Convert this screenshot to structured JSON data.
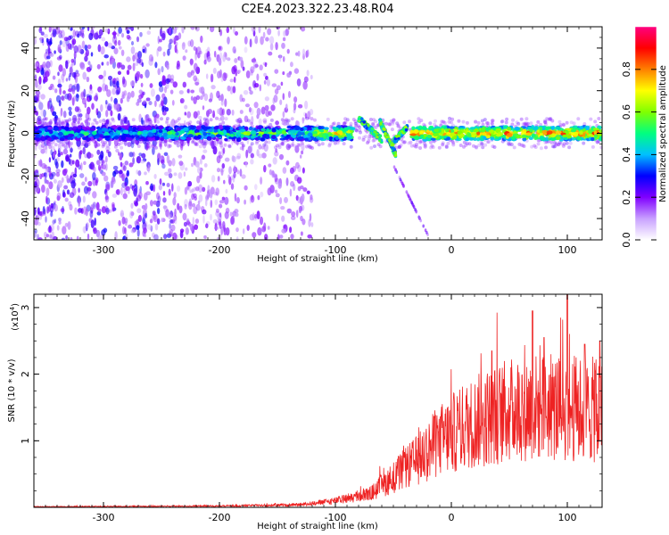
{
  "title": "C2E4.2023.322.23.48.R04",
  "chart_data": [
    {
      "type": "heatmap",
      "name": "spectrogram",
      "xlabel": "Height of straight line (km)",
      "ylabel": "Frequency (Hz)",
      "xlim": [
        -360,
        130
      ],
      "ylim": [
        -50,
        50
      ],
      "xticks": [
        -300,
        -200,
        -100,
        0,
        100
      ],
      "yticks": [
        -40,
        -20,
        0,
        20,
        40
      ],
      "xtick_labels": [
        "-300",
        "-200",
        "-100",
        "0",
        "100"
      ],
      "ytick_labels": [
        "-40",
        "-20",
        "0",
        "20",
        "40"
      ],
      "colorbar": {
        "label": "Normalized spectral amplitude",
        "range": [
          0,
          1
        ],
        "ticks": [
          0,
          0.2,
          0.4,
          0.6,
          0.8
        ],
        "tick_labels": [
          "0.0",
          "0.2",
          "0.4",
          "0.6",
          "0.8"
        ],
        "colors": [
          "#ffffff",
          "#c8a0ff",
          "#8000ff",
          "#0000ff",
          "#00c0ff",
          "#00ff80",
          "#80ff00",
          "#ffff00",
          "#ff8000",
          "#ff0000",
          "#ff0080"
        ]
      },
      "features": {
        "noise_region_x": [
          -360,
          -120
        ],
        "main_band_freq": 0,
        "main_band_width_hz": 6,
        "chirp_segments": [
          {
            "x_start": -80,
            "x_end": -60,
            "f_start": 7,
            "f_end": -3
          },
          {
            "x_start": -62,
            "x_end": -48,
            "f_start": 6,
            "f_end": -10
          },
          {
            "x_start": -50,
            "x_end": -38,
            "f_start": -4,
            "f_end": 3
          }
        ],
        "weak_tail": {
          "x_start": -50,
          "x_end": -20,
          "f_start": -15,
          "f_end": -48
        }
      }
    },
    {
      "type": "line",
      "name": "snr",
      "xlabel": "Height of straight line (km)",
      "ylabel": "SNR (10 * v/v)",
      "yscale_label": "(x10",
      "yscale_exponent": "4",
      "xlim": [
        -360,
        130
      ],
      "ylim": [
        0,
        3.2
      ],
      "xticks": [
        -300,
        -200,
        -100,
        0,
        100
      ],
      "yticks": [
        1,
        2,
        3
      ],
      "xtick_labels": [
        "-300",
        "-200",
        "-100",
        "0",
        "100"
      ],
      "ytick_labels": [
        "1",
        "2",
        "3"
      ],
      "line_color": "#ee2222",
      "trend_points": [
        {
          "x": -360,
          "y": 0.01
        },
        {
          "x": -200,
          "y": 0.02
        },
        {
          "x": -130,
          "y": 0.04
        },
        {
          "x": -100,
          "y": 0.1
        },
        {
          "x": -70,
          "y": 0.2
        },
        {
          "x": -50,
          "y": 0.45
        },
        {
          "x": -30,
          "y": 0.7
        },
        {
          "x": -10,
          "y": 1.0
        },
        {
          "x": 10,
          "y": 1.2
        },
        {
          "x": 30,
          "y": 1.35
        },
        {
          "x": 60,
          "y": 1.5
        },
        {
          "x": 90,
          "y": 1.5
        },
        {
          "x": 130,
          "y": 1.45
        }
      ],
      "peaks": [
        {
          "x": 100,
          "y": 3.2
        },
        {
          "x": 70,
          "y": 2.95
        },
        {
          "x": 128,
          "y": 2.5
        },
        {
          "x": 35,
          "y": 2.35
        },
        {
          "x": 80,
          "y": 2.55
        },
        {
          "x": 115,
          "y": 2.45
        }
      ]
    }
  ]
}
